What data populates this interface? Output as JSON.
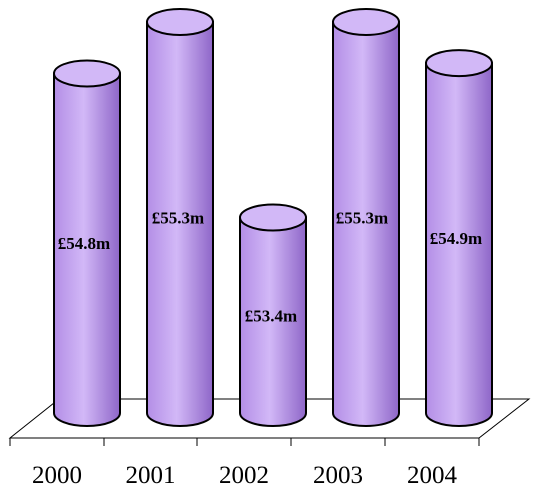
{
  "chart_data": {
    "type": "bar",
    "style": "3d-cylinder",
    "categories": [
      "2000",
      "2001",
      "2002",
      "2003",
      "2004"
    ],
    "values": [
      54.8,
      55.3,
      53.4,
      55.3,
      54.9
    ],
    "data_labels": [
      "£54.8m",
      "£55.3m",
      "£53.4m",
      "£55.3m",
      "£54.9m"
    ],
    "title": "",
    "xlabel": "",
    "ylabel": "",
    "ylim": [
      51.5,
      55.6
    ],
    "grid": false,
    "legend": "none",
    "colors": {
      "bar_fill": "#b38ee6",
      "bar_top": "#d2b8f7",
      "bar_shadow": "#8e66c8",
      "outline": "#000000",
      "floor_line": "#000000"
    }
  }
}
